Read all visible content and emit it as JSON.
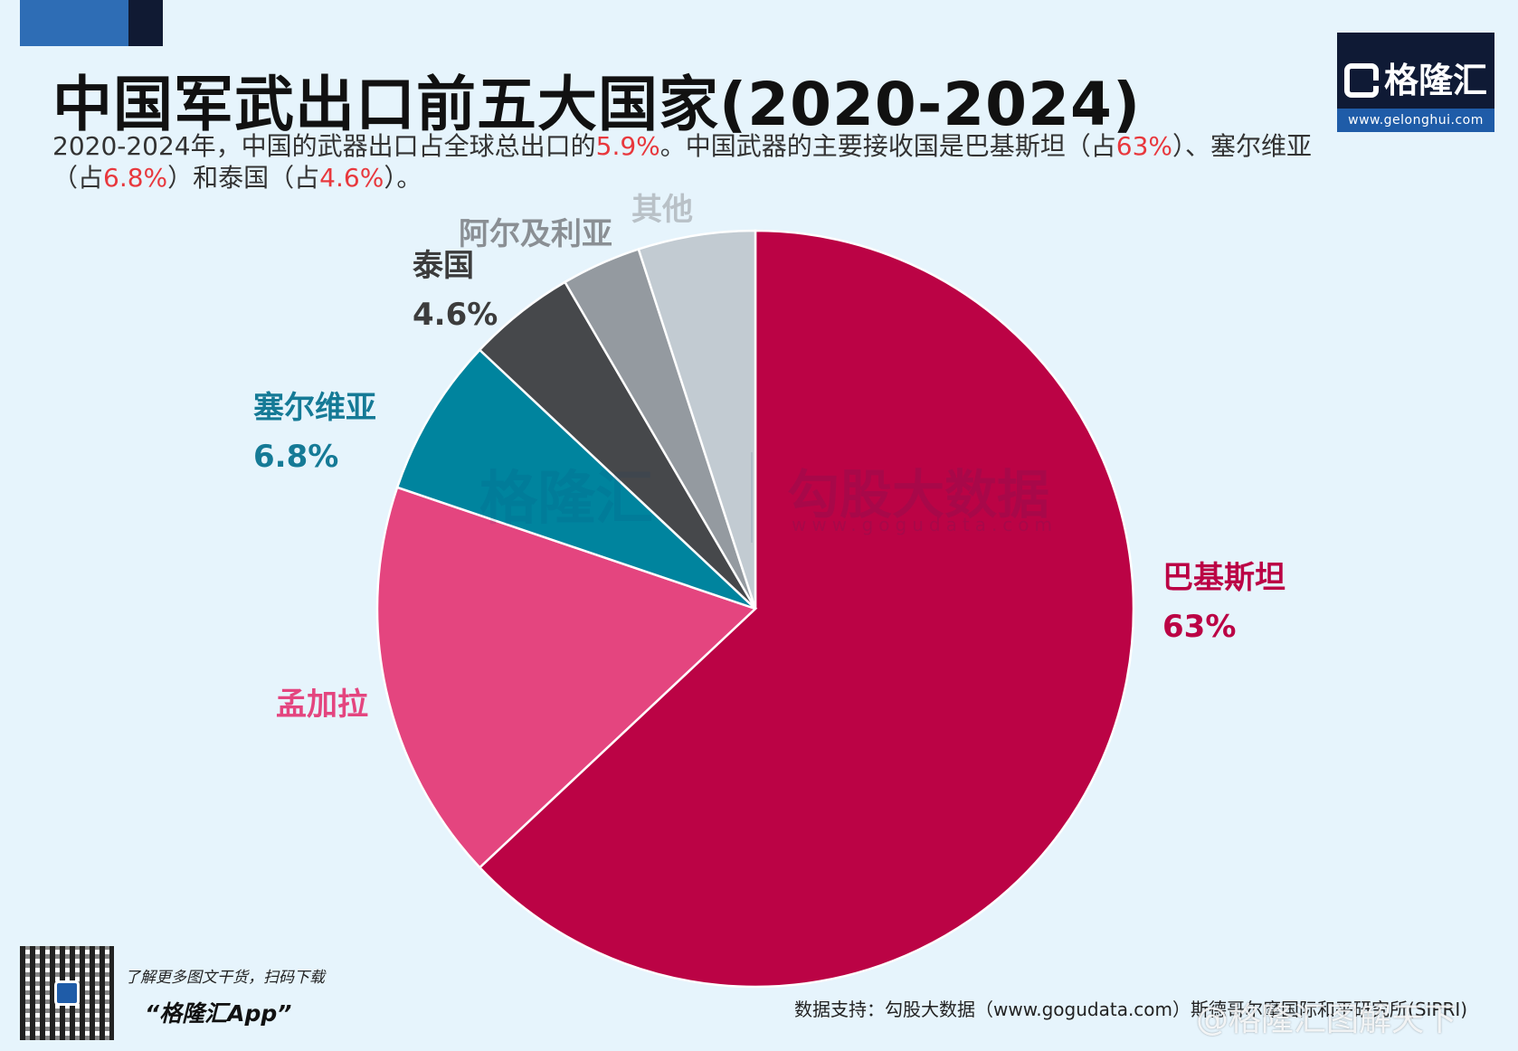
{
  "title": "中国军武出口前五大国家(2020-2024)",
  "subtitle": {
    "p1": "2020-2024年，中国的武器出口占全球总出口的",
    "v1": "5.9%",
    "p2": "。中国武器的主要接收国是巴基斯坦（占",
    "v2": "63%",
    "p3": "）、塞尔维亚（占",
    "v3": "6.8%",
    "p4": "）和泰国（占",
    "v4": "4.6%",
    "p5": "）。"
  },
  "logo": {
    "brand": "格隆汇",
    "url": "www.gelonghui.com"
  },
  "watermark": {
    "left": "格隆汇",
    "left_url": "www.gelonghui.com",
    "right": "勾股大数据",
    "right_url": "www.gogudata.com"
  },
  "chart_data": {
    "type": "pie",
    "start_angle_deg": 0,
    "direction": "clockwise",
    "slices": [
      {
        "name": "巴基斯坦",
        "value": 63,
        "label": "63%",
        "color": "#bb0345",
        "label_color": "#bb0345"
      },
      {
        "name": "孟加拉",
        "value": 17.2,
        "label": "",
        "color": "#e4457f",
        "label_color": "#e4457f"
      },
      {
        "name": "塞尔维亚",
        "value": 6.8,
        "label": "6.8%",
        "color": "#00849e",
        "label_color": "#157a96"
      },
      {
        "name": "泰国",
        "value": 4.6,
        "label": "4.6%",
        "color": "#46484b",
        "label_color": "#3c3c3c"
      },
      {
        "name": "阿尔及利亚",
        "value": 3.4,
        "label": "",
        "color": "#949aa0",
        "label_color": "#8a8f94"
      },
      {
        "name": "其他",
        "value": 5.0,
        "label": "",
        "color": "#c2cbd2",
        "label_color": "#b9c1c7"
      }
    ]
  },
  "footer": {
    "promo": "了解更多图文干货，扫码下载",
    "app": "“格隆汇App”",
    "source": "数据支持：勾股大数据（www.gogudata.com）斯德哥尔摩国际和平研究所(SIPRI)",
    "weibo": "@格隆汇图解天下"
  }
}
